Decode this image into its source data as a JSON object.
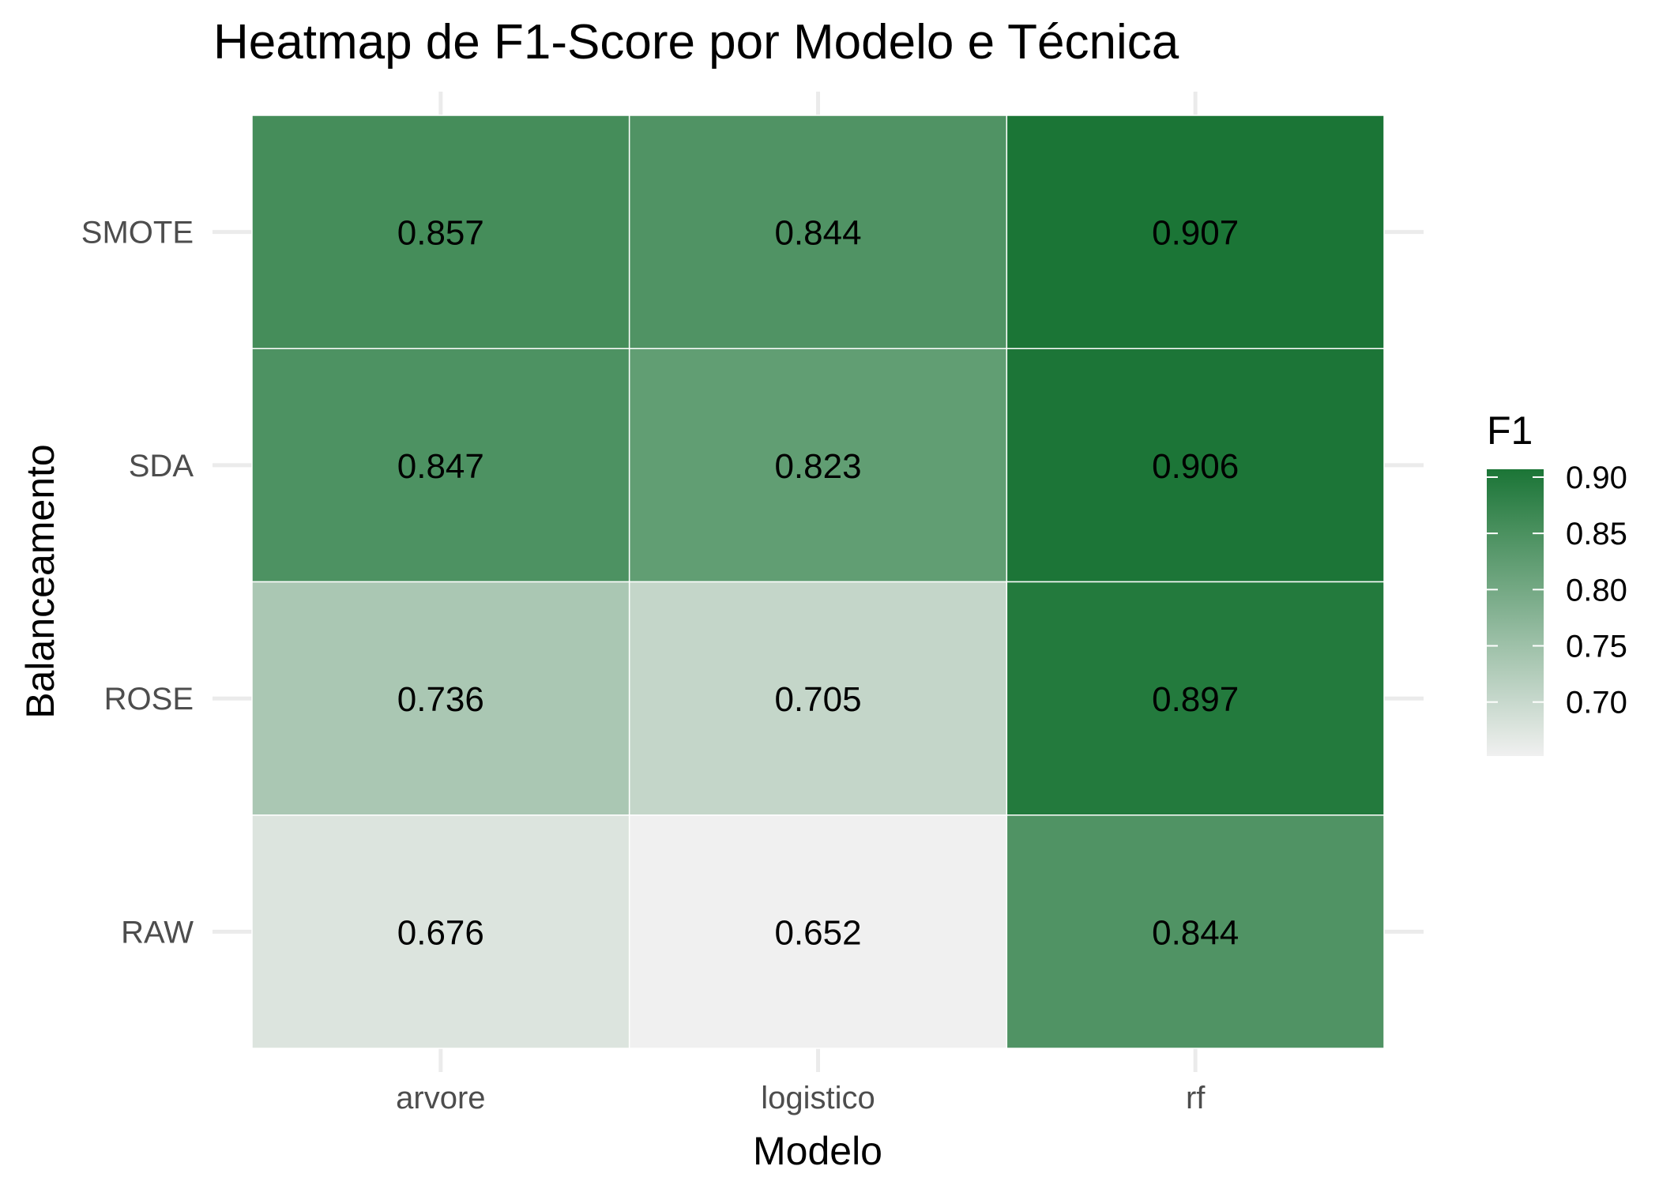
{
  "chart_data": {
    "type": "heatmap",
    "title": "Heatmap de F1-Score por Modelo e Técnica",
    "xlabel": "Modelo",
    "ylabel": "Balanceamento",
    "x_categories": [
      "arvore",
      "logistico",
      "rf"
    ],
    "y_categories": [
      "SMOTE",
      "SDA",
      "ROSE",
      "RAW"
    ],
    "values": [
      [
        0.857,
        0.844,
        0.907
      ],
      [
        0.847,
        0.823,
        0.906
      ],
      [
        0.736,
        0.705,
        0.897
      ],
      [
        0.676,
        0.652,
        0.844
      ]
    ],
    "value_labels": [
      [
        "0.857",
        "0.844",
        "0.907"
      ],
      [
        "0.847",
        "0.823",
        "0.906"
      ],
      [
        "0.736",
        "0.705",
        "0.897"
      ],
      [
        "0.676",
        "0.652",
        "0.844"
      ]
    ],
    "legend": {
      "title": "F1",
      "ticks": [
        0.9,
        0.85,
        0.8,
        0.75,
        0.7
      ],
      "tick_labels": [
        "0.90",
        "0.85",
        "0.80",
        "0.75",
        "0.70"
      ],
      "placement": "right"
    },
    "color_range": [
      0.652,
      0.907
    ],
    "colors": {
      "low": "#f0f0f0",
      "high": "#1b7536"
    },
    "grid": true
  }
}
